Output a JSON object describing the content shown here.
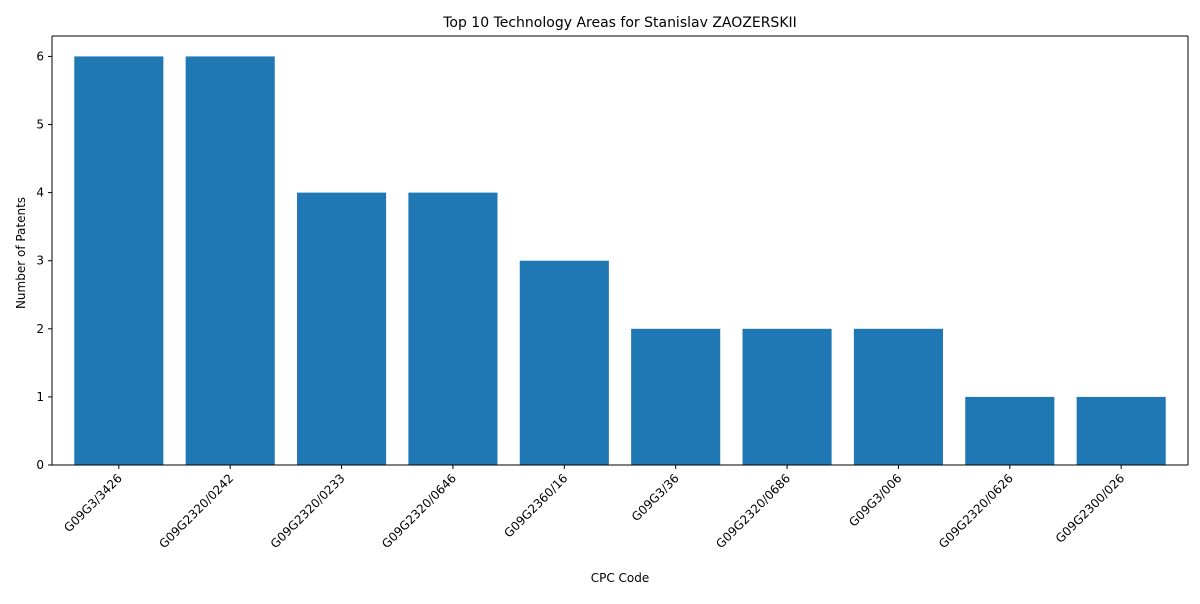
{
  "chart_data": {
    "type": "bar",
    "title": "Top 10 Technology Areas for Stanislav ZAOZERSKII",
    "xlabel": "CPC Code",
    "ylabel": "Number of Patents",
    "categories": [
      "G09G3/3426",
      "G09G2320/0242",
      "G09G2320/0233",
      "G09G2320/0646",
      "G09G2360/16",
      "G09G3/36",
      "G09G2320/0686",
      "G09G3/006",
      "G09G2320/0626",
      "G09G2300/026"
    ],
    "values": [
      6,
      6,
      4,
      4,
      3,
      2,
      2,
      2,
      1,
      1
    ],
    "ylim": [
      0,
      6.3
    ],
    "yticks": [
      0,
      1,
      2,
      3,
      4,
      5,
      6
    ],
    "bar_color": "#1f77b4",
    "grid": false,
    "legend": "none"
  }
}
